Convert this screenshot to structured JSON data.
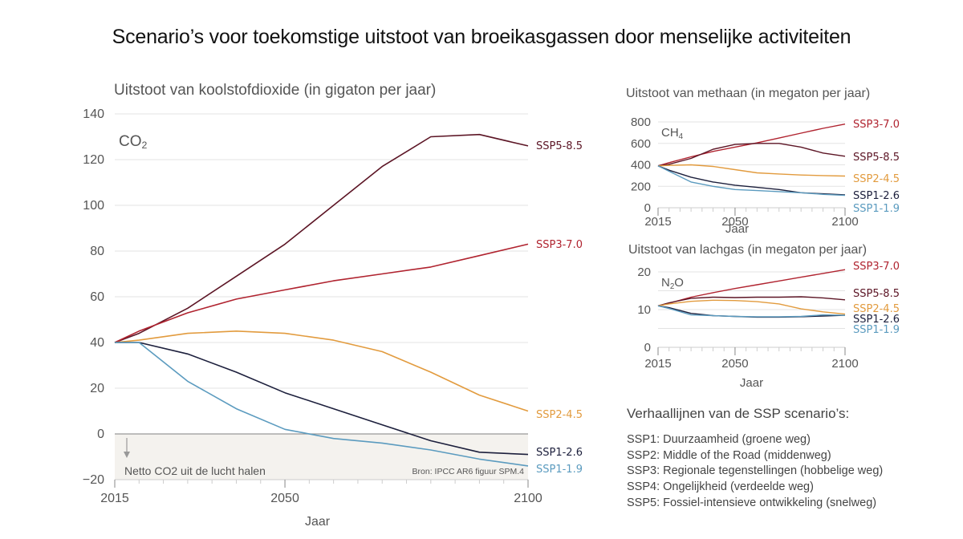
{
  "title": "Scenario’s voor toekomstige uitstoot van broeikasgassen door menselijke activiteiten",
  "colors": {
    "SSP1-1.9": "#5b9bbf",
    "SSP1-2.6": "#1c1f3c",
    "SSP2-4.5": "#e29b3e",
    "SSP3-7.0": "#b0232f",
    "SSP5-8.5": "#5c1525",
    "grid": "#e3e3e3",
    "negative_zone": "#f4f2ee"
  },
  "chart_data": [
    {
      "id": "co2",
      "type": "line",
      "title": "Uitstoot van koolstofdioxide (in gigaton per jaar)",
      "gas_label": "CO",
      "gas_sub": "2",
      "xlabel": "Jaar",
      "ylabel": "",
      "xlim": [
        2015,
        2100
      ],
      "ylim": [
        -20,
        140
      ],
      "xticks": [
        "2015",
        "2050",
        "2100"
      ],
      "yticks": [
        "140",
        "120",
        "100",
        "80",
        "60",
        "40",
        "20",
        "0",
        "-20"
      ],
      "grid": true,
      "negative_zone_label": "Netto CO2 uit de lucht halen",
      "source": "Bron: IPCC AR6 figuur SPM.4",
      "x": [
        2015,
        2020,
        2030,
        2040,
        2050,
        2060,
        2070,
        2080,
        2090,
        2100
      ],
      "series": [
        {
          "name": "SSP5-8.5",
          "values": [
            40,
            44,
            55,
            69,
            83,
            100,
            117,
            130,
            131,
            126
          ]
        },
        {
          "name": "SSP3-7.0",
          "values": [
            40,
            45,
            53,
            59,
            63,
            67,
            70,
            73,
            78,
            83
          ]
        },
        {
          "name": "SSP2-4.5",
          "values": [
            40,
            41,
            44,
            45,
            44,
            41,
            36,
            27,
            17,
            10
          ]
        },
        {
          "name": "SSP1-2.6",
          "values": [
            40,
            40,
            35,
            27,
            18,
            11,
            4,
            -3,
            -8,
            -9
          ]
        },
        {
          "name": "SSP1-1.9",
          "values": [
            40,
            40,
            23,
            11,
            2,
            -2,
            -4,
            -7,
            -11,
            -14
          ]
        }
      ]
    },
    {
      "id": "ch4",
      "type": "line",
      "title": "Uitstoot van methaan (in megaton per jaar)",
      "gas_label": "CH",
      "gas_sub": "4",
      "xlabel": "Jaar",
      "xlim": [
        2015,
        2100
      ],
      "ylim": [
        0,
        800
      ],
      "xticks": [
        "2015",
        "2050",
        "2100"
      ],
      "yticks": [
        "800",
        "600",
        "400",
        "200",
        "0"
      ],
      "grid": true,
      "x": [
        2015,
        2020,
        2030,
        2040,
        2050,
        2060,
        2070,
        2080,
        2090,
        2100
      ],
      "series": [
        {
          "name": "SSP3-7.0",
          "values": [
            390,
            420,
            475,
            525,
            565,
            605,
            650,
            695,
            740,
            780
          ]
        },
        {
          "name": "SSP5-8.5",
          "values": [
            390,
            405,
            460,
            545,
            590,
            600,
            600,
            565,
            510,
            480
          ]
        },
        {
          "name": "SSP2-4.5",
          "values": [
            390,
            395,
            400,
            385,
            355,
            325,
            315,
            305,
            300,
            295
          ]
        },
        {
          "name": "SSP1-2.6",
          "values": [
            390,
            350,
            285,
            240,
            210,
            190,
            170,
            140,
            130,
            120
          ]
        },
        {
          "name": "SSP1-1.9",
          "values": [
            390,
            340,
            240,
            200,
            170,
            160,
            150,
            140,
            125,
            115
          ]
        }
      ]
    },
    {
      "id": "n2o",
      "type": "line",
      "title": "Uitstoot van lachgas (in megaton per jaar)",
      "gas_label": "N",
      "gas_sub": "2",
      "gas_suffix": "O",
      "xlabel": "Jaar",
      "xlim": [
        2015,
        2100
      ],
      "ylim": [
        0,
        20
      ],
      "xticks": [
        "2015",
        "2050",
        "2100"
      ],
      "yticks": [
        "20",
        "10",
        "0"
      ],
      "grid": true,
      "x": [
        2015,
        2020,
        2030,
        2040,
        2050,
        2060,
        2070,
        2080,
        2090,
        2100
      ],
      "series": [
        {
          "name": "SSP3-7.0",
          "values": [
            11,
            11.7,
            13.3,
            14.5,
            15.6,
            16.6,
            17.6,
            18.6,
            19.6,
            20.6
          ]
        },
        {
          "name": "SSP5-8.5",
          "values": [
            11,
            11.8,
            13.0,
            13.3,
            13.2,
            13.3,
            13.3,
            13.4,
            13.1,
            12.6
          ]
        },
        {
          "name": "SSP2-4.5",
          "values": [
            11,
            11.5,
            12.2,
            12.5,
            12.4,
            12.1,
            11.5,
            10.2,
            9.4,
            8.8
          ]
        },
        {
          "name": "SSP1-2.6",
          "values": [
            11,
            10.5,
            9.0,
            8.4,
            8.2,
            8.0,
            8.0,
            8.1,
            8.3,
            8.5
          ]
        },
        {
          "name": "SSP1-1.9",
          "values": [
            11,
            10.3,
            8.6,
            8.4,
            8.2,
            8.1,
            8.1,
            8.2,
            8.6,
            8.5
          ]
        }
      ]
    }
  ],
  "storylines": {
    "title": "Verhaallijnen van de SSP scenario’s:",
    "items": [
      "SSP1: Duurzaamheid (groene weg)",
      "SSP2: Middle of the Road (middenweg)",
      "SSP3: Regionale tegenstellingen (hobbelige weg)",
      "SSP4: Ongelijkheid (verdeelde weg)",
      "SSP5: Fossiel-intensieve ontwikkeling (snelweg)"
    ]
  }
}
